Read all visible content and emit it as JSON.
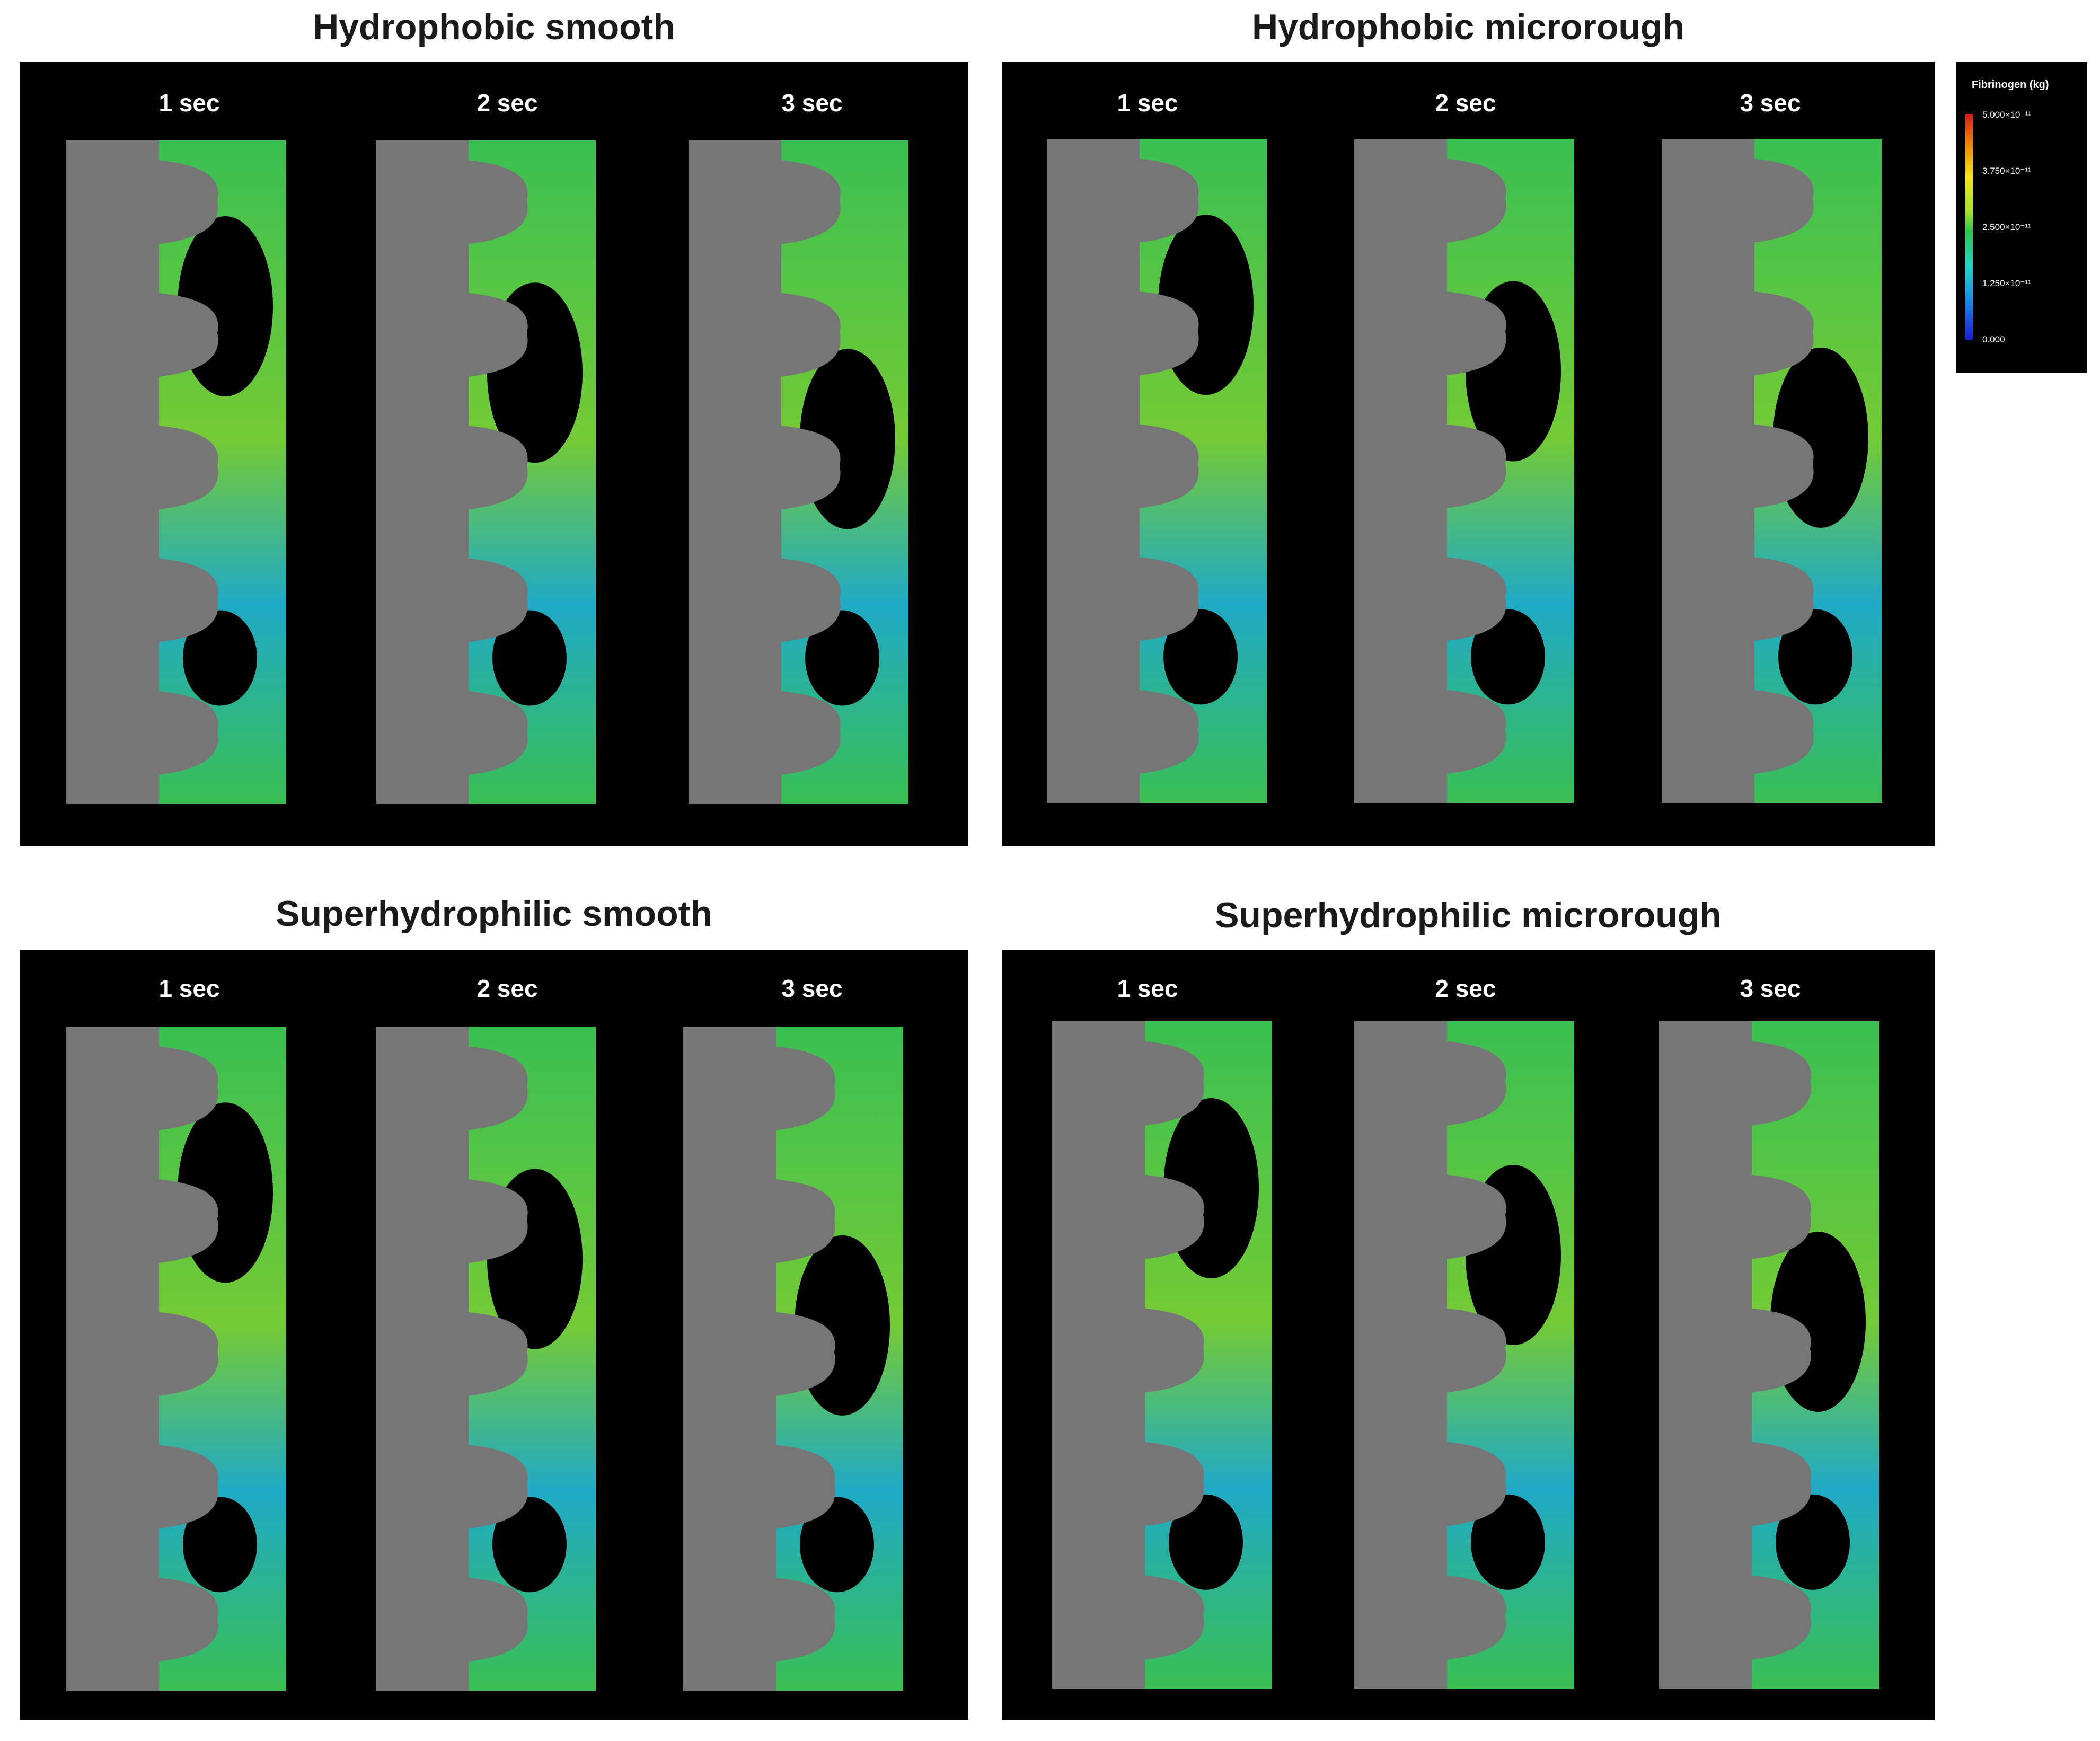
{
  "panels": [
    {
      "title": "Hydrophobic smooth",
      "times": [
        "1 sec",
        "2 sec",
        "3 sec"
      ]
    },
    {
      "title": "Hydrophobic microrough",
      "times": [
        "1 sec",
        "2 sec",
        "3 sec"
      ]
    },
    {
      "title": "Superhydrophilic smooth",
      "times": [
        "1 sec",
        "2 sec",
        "3 sec"
      ]
    },
    {
      "title": "Superhydrophilic microrough",
      "times": [
        "1 sec",
        "2 sec",
        "3 sec"
      ]
    }
  ],
  "legend": {
    "title": "Fibrinogen (kg)",
    "ticks": [
      "5.000×10⁻¹¹",
      "3.750×10⁻¹¹",
      "2.500×10⁻¹¹",
      "1.250×10⁻¹¹",
      "0.000"
    ],
    "colors": [
      "#d7191c",
      "#f08a00",
      "#f5e51b",
      "#2ec44a",
      "#1fd6c2",
      "#1a8fe8",
      "#1a1ad6"
    ]
  },
  "colors": {
    "panel_background": "#000000",
    "substrate_gray": "#767676",
    "fluid_green": "#3fd05a",
    "fluid_cyan": "#22b8d8",
    "fluid_blue": "#1f5fd0"
  }
}
